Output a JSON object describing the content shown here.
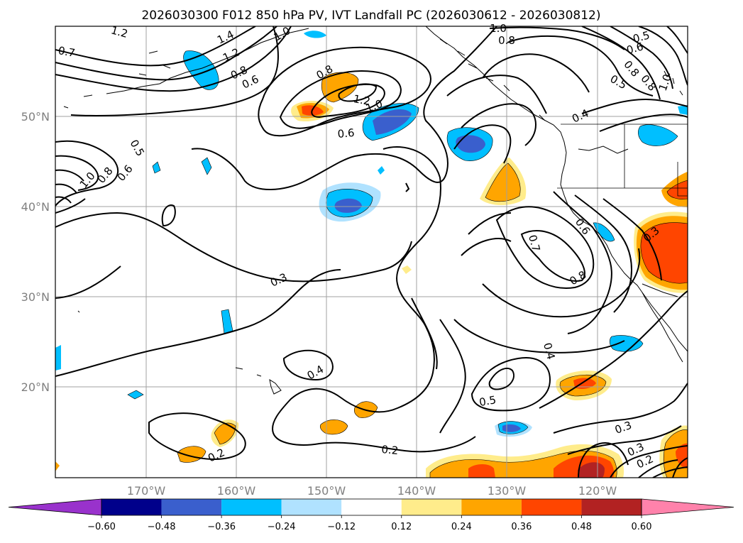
{
  "title": "2026030300 F012 850 hPa PV, IVT Landfall PC (2026030612 - 2026030812)",
  "lon_ticks": [
    "170°W",
    "160°W",
    "150°W",
    "140°W",
    "130°W",
    "120°W"
  ],
  "lat_ticks": [
    "50°N",
    "40°N",
    "30°N",
    "20°N"
  ],
  "colorbar": {
    "colors": [
      "#9932CC",
      "#00008B",
      "#3A5FCD",
      "#00BFFF",
      "#B0E2FF",
      "#FFFFFF",
      "#FFEC8B",
      "#FFA500",
      "#FF4500",
      "#B22222",
      "#FF82AB"
    ],
    "tick_labels": [
      "−0.60",
      "−0.48",
      "−0.36",
      "−0.24",
      "−0.12",
      "0.12",
      "0.24",
      "0.36",
      "0.48",
      "0.60"
    ]
  },
  "contour_labels": [
    "1.2",
    "1.4",
    "1.0",
    "1.2",
    "0.8",
    "0.6",
    "0.7",
    "0.8",
    "1.2",
    "1.0",
    "0.6",
    "1.0",
    "0.8",
    "0.5",
    "0.6",
    "0.8",
    "0.5",
    "0.8",
    "1.0",
    "0.4",
    "0.5",
    "0.6",
    "0.8",
    "1.0",
    "0.6",
    "0.7",
    "0.8",
    "0.3",
    "0.3",
    "0.4",
    "0.4",
    "0.5",
    "0.2",
    "0.2",
    "0.3",
    "0.3",
    "0.2"
  ]
}
